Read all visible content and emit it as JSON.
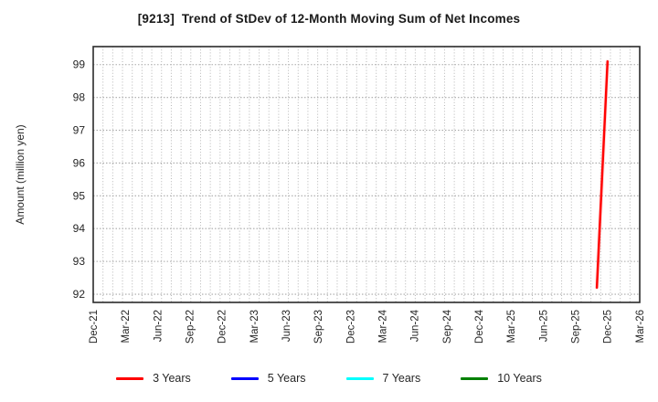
{
  "chart_data": {
    "type": "line",
    "title": "[9213]  Trend of StDev of 12-Month Moving Sum of Net Incomes",
    "ylabel": "Amount (million yen)",
    "x_tick_labels": [
      "Dec-21",
      "Mar-22",
      "Jun-22",
      "Sep-22",
      "Dec-22",
      "Mar-23",
      "Jun-23",
      "Sep-23",
      "Dec-23",
      "Mar-24",
      "Jun-24",
      "Sep-24",
      "Dec-24",
      "Mar-25",
      "Jun-25",
      "Sep-25",
      "Dec-25",
      "Mar-26"
    ],
    "y_tick_labels": [
      92,
      93,
      94,
      95,
      96,
      97,
      98,
      99
    ],
    "ylim": [
      91.75,
      99.55
    ],
    "x_total_months": 51,
    "x_grid_divisions": 56,
    "grid": true,
    "legend_position": "bottom",
    "series": [
      {
        "name": "3 Years",
        "color": "#ff0000",
        "points": [
          {
            "month": "Nov-25",
            "month_index": 47,
            "value": 92.2
          },
          {
            "month": "Dec-25",
            "month_index": 48,
            "value": 99.1
          }
        ]
      },
      {
        "name": "5 Years",
        "color": "#0000ff",
        "points": []
      },
      {
        "name": "7 Years",
        "color": "#00ffff",
        "points": []
      },
      {
        "name": "10 Years",
        "color": "#008000",
        "points": []
      }
    ]
  }
}
